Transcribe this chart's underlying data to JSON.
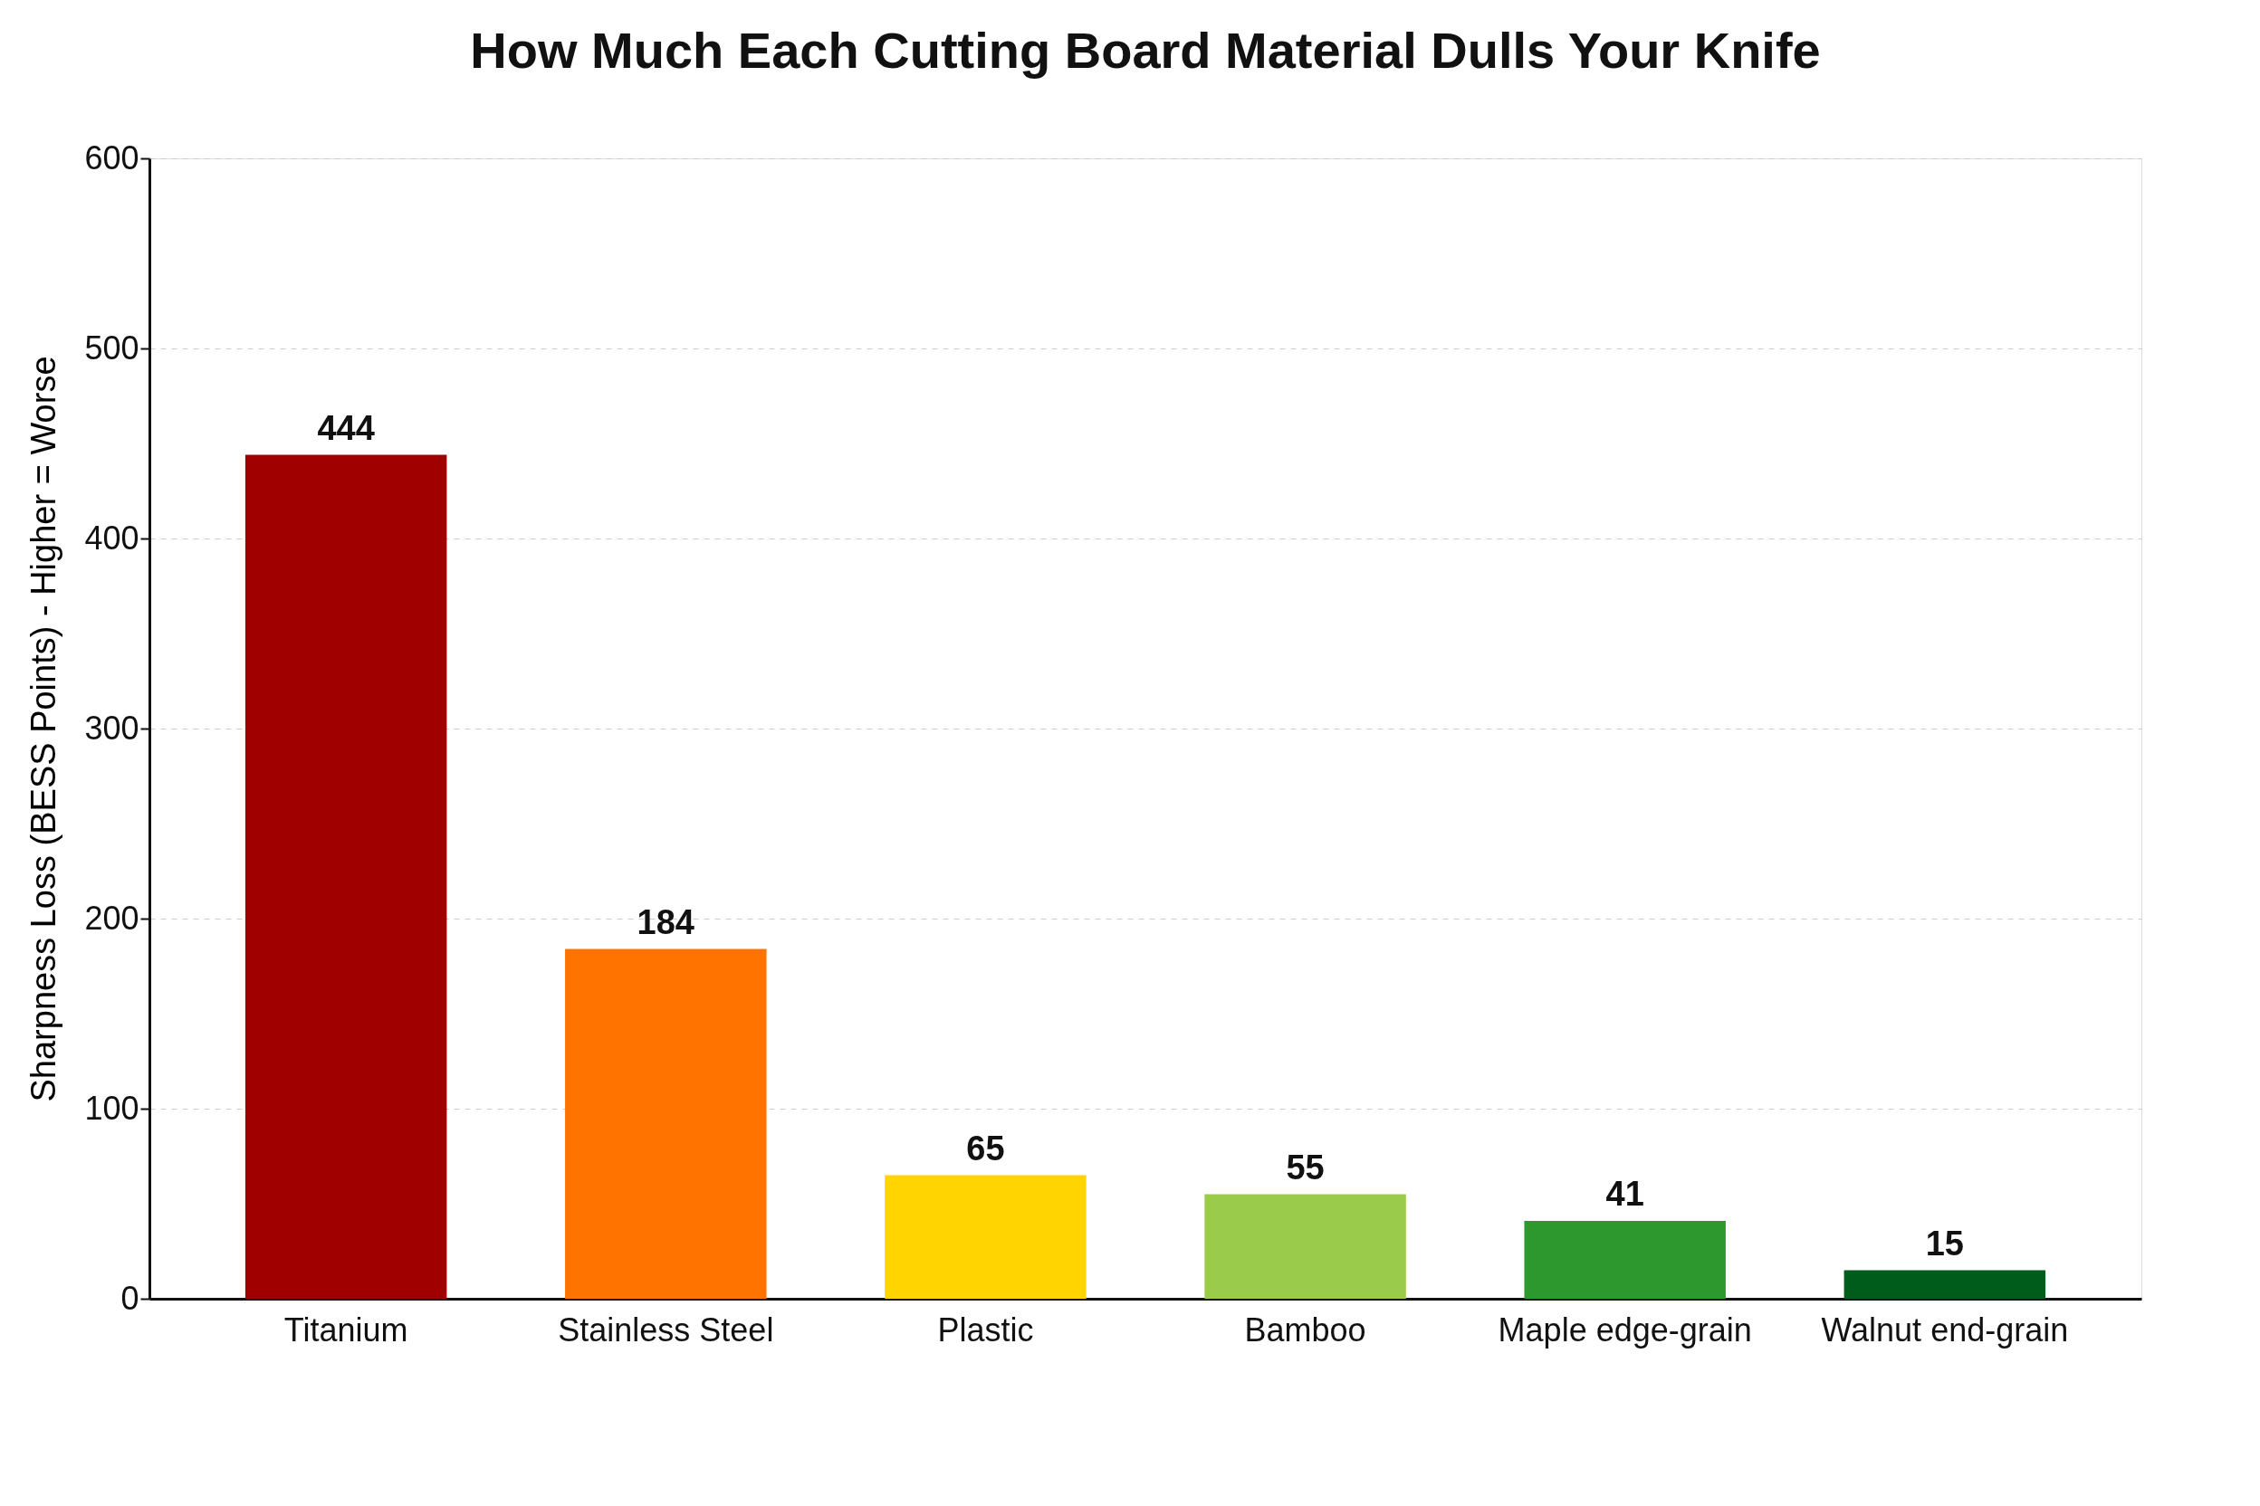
{
  "chart_data": {
    "type": "bar",
    "title": "How Much Each Cutting Board Material Dulls Your Knife",
    "ylabel": "Sharpness Loss (BESS Points) - Higher = Worse",
    "categories": [
      "Titanium",
      "Stainless Steel",
      "Plastic",
      "Bamboo",
      "Maple edge-grain",
      "Walnut end-grain"
    ],
    "values": [
      444,
      184,
      65,
      55,
      41,
      15
    ],
    "colors": [
      "#a00000",
      "#ff7300",
      "#ffd400",
      "#9bcb4b",
      "#2d982e",
      "#005c1a"
    ],
    "ylim": [
      0,
      600
    ],
    "yticks": [
      0,
      100,
      200,
      300,
      400,
      500,
      600
    ],
    "grid": "y",
    "data_labels": true
  }
}
